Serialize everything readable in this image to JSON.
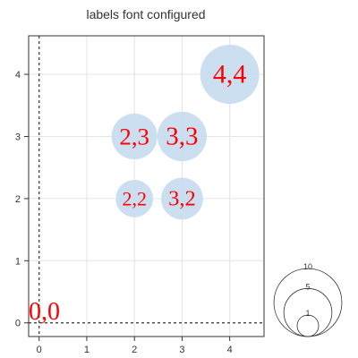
{
  "chart_data": {
    "type": "scatter",
    "title": "labels font configured",
    "xlabel": "",
    "ylabel": "",
    "xlim": [
      -0.22,
      4.72
    ],
    "ylim": [
      -0.22,
      4.62
    ],
    "xticks": [
      "0",
      "1",
      "2",
      "3",
      "4"
    ],
    "yticks": [
      "0",
      "1",
      "2",
      "3",
      "4"
    ],
    "grid": true,
    "points": [
      {
        "x": 0,
        "y": 0,
        "size": 0,
        "label": "0,0"
      },
      {
        "x": 2,
        "y": 2,
        "size": 4,
        "label": "2,2"
      },
      {
        "x": 3,
        "y": 2,
        "size": 5,
        "label": "3,2"
      },
      {
        "x": 2,
        "y": 3,
        "size": 6,
        "label": "2,3"
      },
      {
        "x": 3,
        "y": 3,
        "size": 7,
        "label": "3,3"
      },
      {
        "x": 4,
        "y": 4,
        "size": 10,
        "label": "4,4"
      }
    ],
    "size_legend": {
      "placement": "bottom-right",
      "values": [
        10,
        5,
        1
      ],
      "labels": [
        "10",
        "5",
        "1"
      ]
    },
    "colors": {
      "bubble": "#c6dbf0",
      "label": "#ff0000",
      "grid": "#e4e4e4",
      "zero_line": "#333333"
    }
  }
}
